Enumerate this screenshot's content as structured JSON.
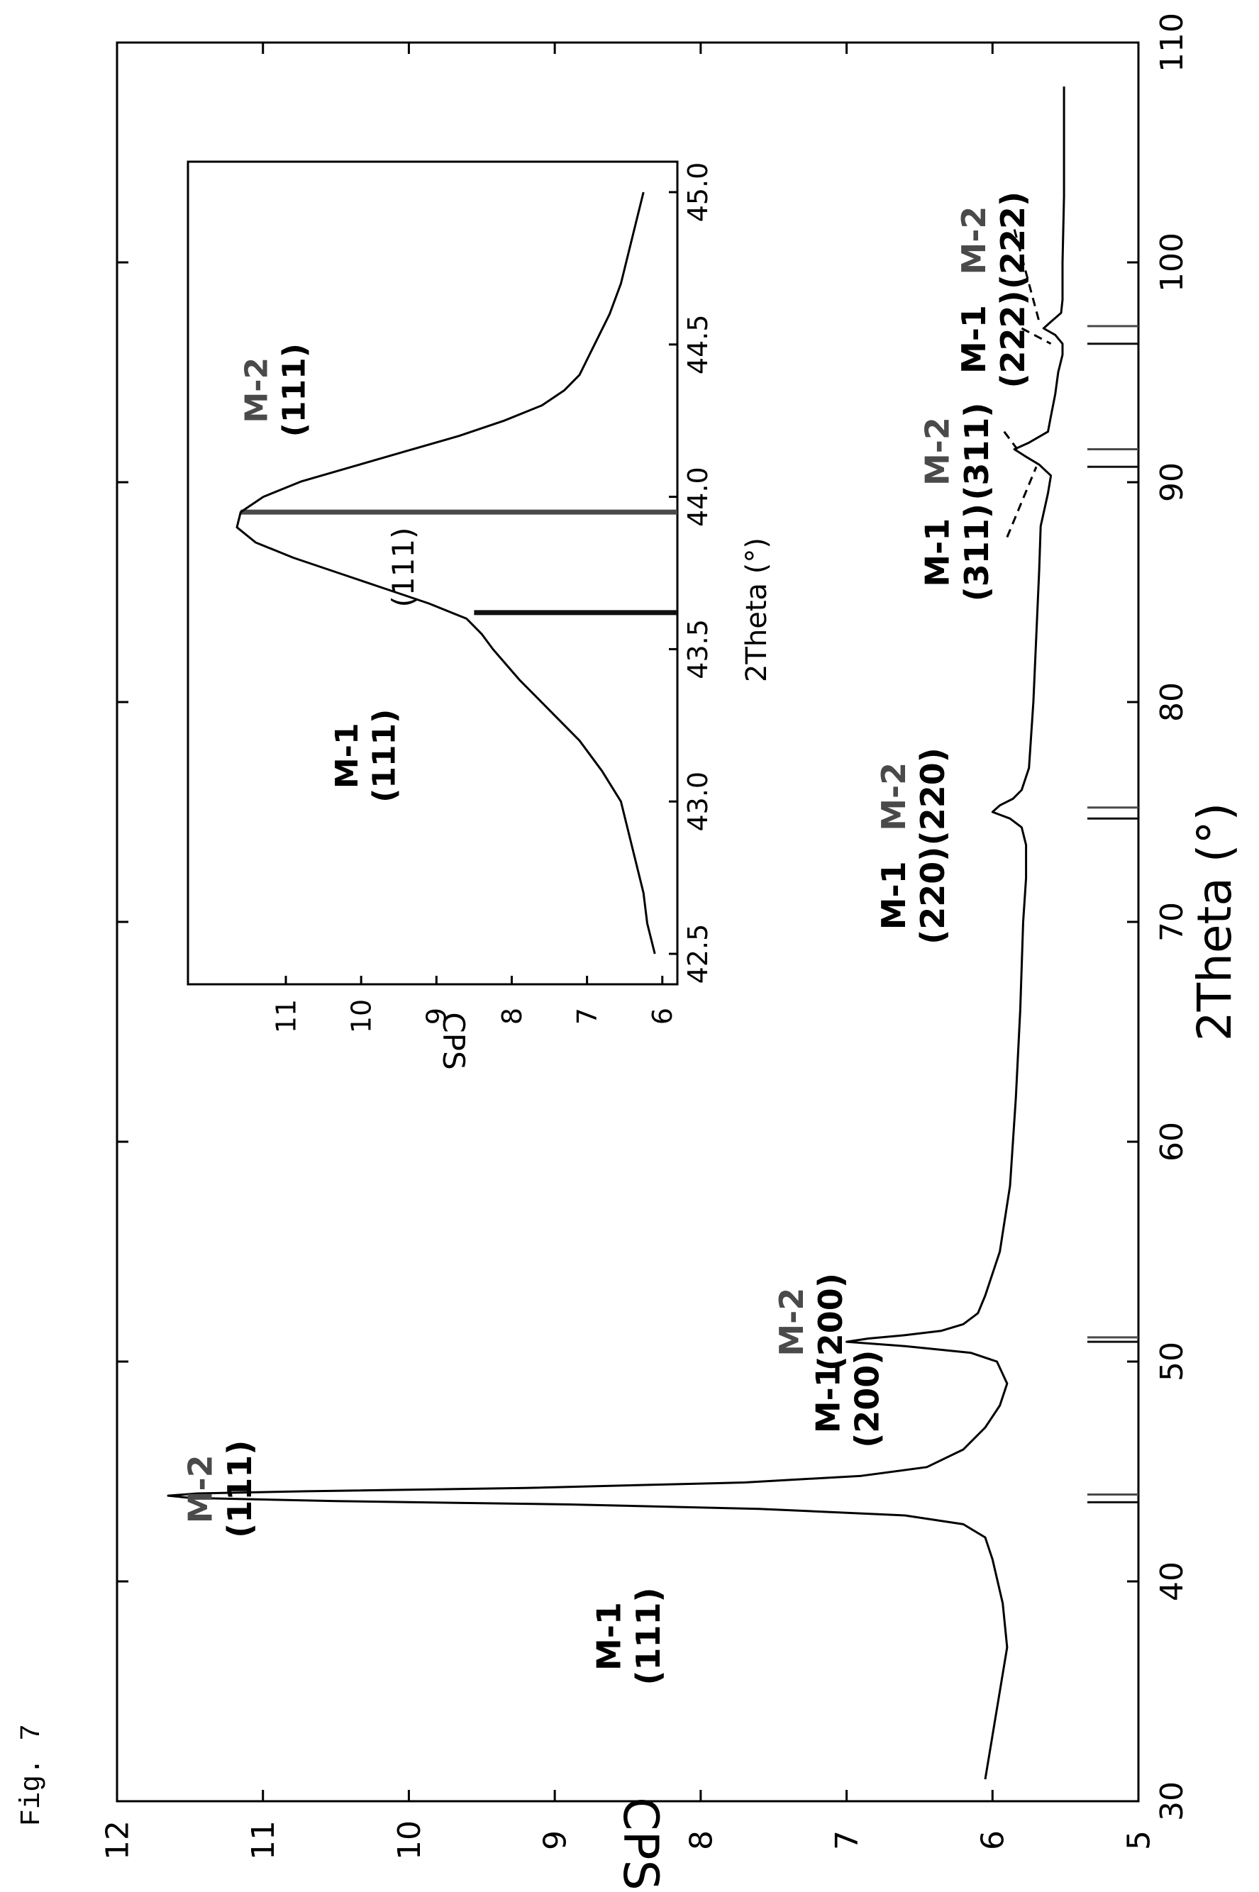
{
  "figure_label": "Fig. 7",
  "chart_data": [
    {
      "type": "line",
      "xlabel": "2Theta (°)",
      "ylabel": "CPS",
      "xlim": [
        30,
        110
      ],
      "ylim": [
        5,
        12
      ],
      "xticks": [
        30,
        40,
        50,
        60,
        70,
        80,
        90,
        100,
        110
      ],
      "yticks": [
        5,
        6,
        7,
        8,
        9,
        10,
        11,
        12
      ],
      "series": [
        {
          "x": [
            31,
            33,
            35,
            37,
            39,
            41,
            42,
            42.6,
            43.0,
            43.3,
            43.5,
            43.65,
            43.8,
            43.9,
            44.0,
            44.1,
            44.25,
            44.5,
            44.8,
            45.2,
            46,
            47,
            48,
            49,
            50,
            50.4,
            50.7,
            50.9,
            51.05,
            51.2,
            51.4,
            51.7,
            52.2,
            53,
            55,
            58,
            62,
            66,
            70,
            72,
            73.5,
            74.3,
            74.7,
            75.0,
            75.3,
            75.6,
            76.0,
            77,
            80,
            83,
            86,
            88,
            89.5,
            90.3,
            90.8,
            91.2,
            91.5,
            91.8,
            92.3,
            93,
            94,
            95,
            95.8,
            96.3,
            96.7,
            97.0,
            97.3,
            97.7,
            98.3,
            100,
            103,
            106,
            108
          ],
          "y": [
            6.05,
            6.0,
            5.95,
            5.9,
            5.93,
            6.0,
            6.05,
            6.2,
            6.6,
            7.6,
            8.9,
            10.5,
            11.5,
            11.65,
            11.45,
            10.7,
            9.2,
            7.7,
            6.9,
            6.45,
            6.2,
            6.05,
            5.95,
            5.9,
            5.97,
            6.15,
            6.6,
            7.0,
            6.85,
            6.6,
            6.35,
            6.2,
            6.1,
            6.05,
            5.95,
            5.88,
            5.84,
            5.81,
            5.79,
            5.77,
            5.77,
            5.8,
            5.88,
            6.0,
            5.95,
            5.86,
            5.8,
            5.75,
            5.72,
            5.7,
            5.68,
            5.67,
            5.62,
            5.6,
            5.68,
            5.78,
            5.85,
            5.75,
            5.62,
            5.6,
            5.57,
            5.55,
            5.52,
            5.52,
            5.57,
            5.65,
            5.6,
            5.53,
            5.52,
            5.52,
            5.51,
            5.51,
            5.51
          ]
        }
      ],
      "reference_lines": [
        {
          "x": 43.6,
          "y": 5.35,
          "series": "M-1"
        },
        {
          "x": 43.95,
          "y": 5.35,
          "series": "M-2"
        },
        {
          "x": 50.9,
          "y": 5.35,
          "series": "M-1"
        },
        {
          "x": 51.1,
          "y": 5.35,
          "series": "M-2"
        },
        {
          "x": 74.7,
          "y": 5.35,
          "series": "M-1"
        },
        {
          "x": 75.2,
          "y": 5.35,
          "series": "M-2"
        },
        {
          "x": 90.7,
          "y": 5.35,
          "series": "M-1"
        },
        {
          "x": 91.5,
          "y": 5.35,
          "series": "M-2"
        },
        {
          "x": 96.3,
          "y": 5.35,
          "series": "M-1"
        },
        {
          "x": 97.1,
          "y": 5.35,
          "series": "M-2"
        }
      ],
      "annotations": [
        {
          "name": "M-1",
          "plane": "(111)",
          "x": 37.5,
          "y": 8.55,
          "color": "#000000"
        },
        {
          "name": "M-2",
          "plane": "(111)",
          "x": 44.2,
          "y": 11.35,
          "color": "#4a4a4a"
        },
        {
          "name": "M-1",
          "plane": "(200)",
          "x": 48.3,
          "y": 7.05,
          "color": "#000000"
        },
        {
          "name": "M-2",
          "plane": "(200)",
          "x": 51.8,
          "y": 7.3,
          "color": "#4a4a4a"
        },
        {
          "name": "M-1",
          "plane": "(220)",
          "x": 71.2,
          "y": 6.6,
          "color": "#000000"
        },
        {
          "name": "M-2",
          "plane": "(220)",
          "x": 75.7,
          "y": 6.6,
          "color": "#4a4a4a"
        },
        {
          "name": "M-1",
          "plane": "(311)",
          "x": 86.8,
          "y": 6.3,
          "color": "#000000"
        },
        {
          "name": "M-2",
          "plane": "(311)",
          "x": 91.4,
          "y": 6.3,
          "color": "#4a4a4a"
        },
        {
          "name": "M-1",
          "plane": "(222)",
          "x": 96.5,
          "y": 6.05,
          "color": "#000000"
        },
        {
          "name": "M-2",
          "plane": "(222)",
          "x": 101.0,
          "y": 6.05,
          "color": "#4a4a4a"
        }
      ],
      "leader_lines": [
        {
          "from": [
            87.5,
            5.9
          ],
          "to": [
            90.7,
            5.7
          ]
        },
        {
          "from": [
            92.3,
            5.92
          ],
          "to": [
            91.5,
            5.83
          ]
        },
        {
          "from": [
            97.0,
            5.8
          ],
          "to": [
            96.3,
            5.6
          ]
        },
        {
          "from": [
            101.5,
            5.85
          ],
          "to": [
            97.3,
            5.68
          ]
        }
      ]
    },
    {
      "type": "line",
      "title": "(111)",
      "xlabel": "2Theta (°)",
      "ylabel": "CPS",
      "xlim": [
        42.4,
        45.1
      ],
      "ylim": [
        5.8,
        12.3
      ],
      "xticks": [
        42.5,
        43.0,
        43.5,
        44.0,
        44.5,
        45.0
      ],
      "yticks": [
        6,
        7,
        8,
        9,
        10,
        11
      ],
      "series": [
        {
          "x": [
            42.5,
            42.6,
            42.7,
            42.8,
            42.9,
            43.0,
            43.1,
            43.2,
            43.3,
            43.4,
            43.5,
            43.55,
            43.6,
            43.65,
            43.7,
            43.75,
            43.8,
            43.85,
            43.9,
            43.95,
            44.0,
            44.05,
            44.1,
            44.15,
            44.2,
            44.25,
            44.3,
            44.35,
            44.4,
            44.5,
            44.6,
            44.7,
            44.8,
            44.9,
            45.0
          ],
          "y": [
            6.1,
            6.2,
            6.25,
            6.35,
            6.45,
            6.55,
            6.8,
            7.1,
            7.5,
            7.9,
            8.25,
            8.4,
            8.6,
            9.1,
            9.7,
            10.3,
            10.9,
            11.4,
            11.65,
            11.6,
            11.3,
            10.8,
            10.1,
            9.4,
            8.7,
            8.1,
            7.6,
            7.3,
            7.1,
            6.9,
            6.7,
            6.55,
            6.45,
            6.35,
            6.25
          ]
        }
      ],
      "reference_lines": [
        {
          "x": 43.62,
          "y": 8.5,
          "series": "M-1"
        },
        {
          "x": 43.95,
          "y": 11.6,
          "series": "M-2"
        }
      ],
      "annotations": [
        {
          "name": "M-1",
          "plane": "(111)",
          "x": 43.15,
          "y": 10.05,
          "color": "#000000"
        },
        {
          "name": "M-2",
          "plane": "(111)",
          "x": 44.35,
          "y": 11.25,
          "color": "#4a4a4a"
        }
      ]
    }
  ]
}
